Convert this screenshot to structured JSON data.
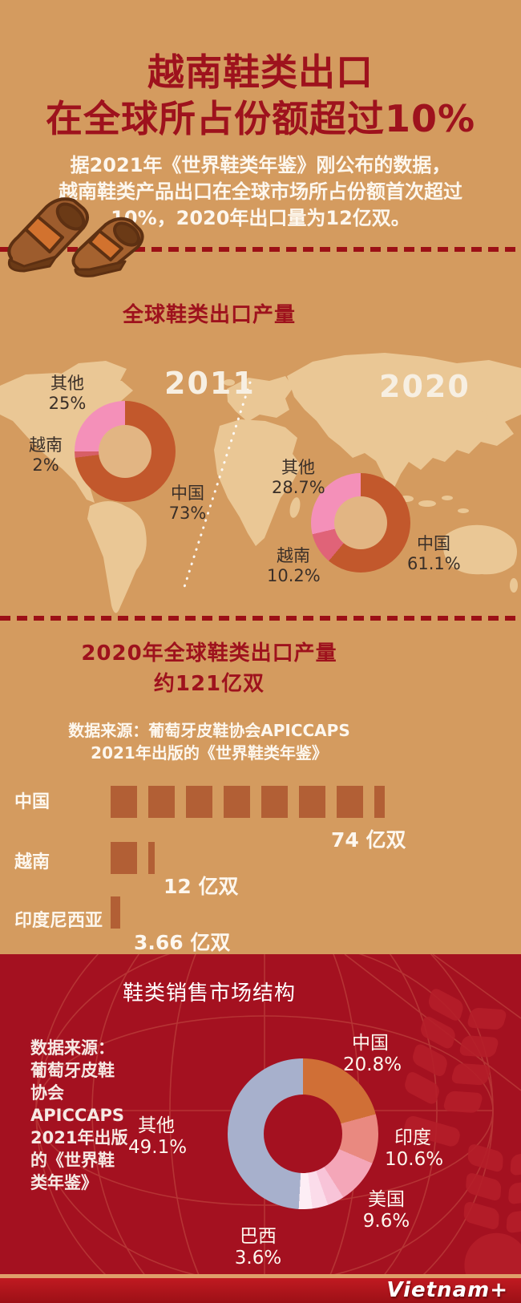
{
  "palette": {
    "background_tan": "#d49b5f",
    "map_land": "#eac795",
    "dark_red": "#9e121d",
    "section_red_bg": "#a41120",
    "bar_block": "#b25f35",
    "footer_bar": "#b4151c"
  },
  "header": {
    "title_line1": "越南鞋类出口",
    "title_line2": "在全球所占份额超过10%",
    "subtitle_lines": [
      "据2021年《世界鞋类年鉴》刚公布的数据，",
      "越南鞋类产品出口在全球市场所占份额首次超过",
      "10%，2020年出口量为12亿双。"
    ]
  },
  "section_production": {
    "title": "全球鞋类出口产量",
    "year_left": "2011",
    "year_right": "2020"
  },
  "section_total": {
    "title_line1": "2020年全球鞋类出口产量",
    "title_line2": "约121亿双",
    "source_line1": "数据来源：葡萄牙皮鞋协会APICCAPS",
    "source_line2": "2021年出版的《世界鞋类年鉴》"
  },
  "section_market": {
    "title": "鞋类销售市场结构",
    "source_lines": [
      "数据来源：",
      "葡萄牙皮鞋",
      "协会",
      "APICCAPS",
      "2021年出版",
      "的《世界鞋",
      "类年鉴》"
    ]
  },
  "footer": {
    "logo": "Vietnam+"
  },
  "chart_data": [
    {
      "id": "exports_share_2011",
      "type": "pie",
      "title": "全球鞋类出口产量 2011",
      "legend_position": "around",
      "segments": [
        {
          "label": "中国",
          "value": 73,
          "display": "73%",
          "color": "#c2582c"
        },
        {
          "label": "越南",
          "value": 2,
          "display": "2%",
          "color": "#d85f66"
        },
        {
          "label": "其他",
          "value": 25,
          "display": "25%",
          "color": "#f490b9"
        }
      ]
    },
    {
      "id": "exports_share_2020",
      "type": "pie",
      "title": "全球鞋类出口产量 2020",
      "legend_position": "around",
      "segments": [
        {
          "label": "中国",
          "value": 61.1,
          "display": "61.1%",
          "color": "#c2582c"
        },
        {
          "label": "越南",
          "value": 10.2,
          "display": "10.2%",
          "color": "#e06378"
        },
        {
          "label": "其他",
          "value": 28.7,
          "display": "28.7%",
          "color": "#f490b9"
        }
      ]
    },
    {
      "id": "export_volume_2020",
      "type": "bar",
      "title": "2020年全球鞋类出口产量 约121亿双",
      "unit": "亿双",
      "unit_per_block": 10,
      "rows": [
        {
          "label": "中国",
          "value": 74,
          "display": "74 亿双"
        },
        {
          "label": "越南",
          "value": 12,
          "display": "12 亿双"
        },
        {
          "label": "印度尼西亚",
          "value": 3.66,
          "display": "3.66 亿双"
        }
      ]
    },
    {
      "id": "sales_market_structure",
      "type": "pie",
      "title": "鞋类销售市场结构",
      "legend_position": "around",
      "segments": [
        {
          "label": "中国",
          "value": 20.8,
          "display": "20.8%",
          "color": "#d06f36"
        },
        {
          "label": "印度",
          "value": 10.6,
          "display": "10.6%",
          "color": "#e98980"
        },
        {
          "label": "美国",
          "value": 9.6,
          "display": "9.6%",
          "color": "#f4a6b8"
        },
        {
          "label": "巴西",
          "value": 3.6,
          "display": "3.6%",
          "color": "#f8c4d8"
        },
        {
          "label": "",
          "value": 3.4,
          "display": "",
          "color": "#fbdcea"
        },
        {
          "label": "",
          "value": 2.9,
          "display": "",
          "color": "#fdeef5"
        },
        {
          "label": "其他",
          "value": 49.1,
          "display": "49.1%",
          "color": "#a7b0cc"
        }
      ]
    }
  ]
}
